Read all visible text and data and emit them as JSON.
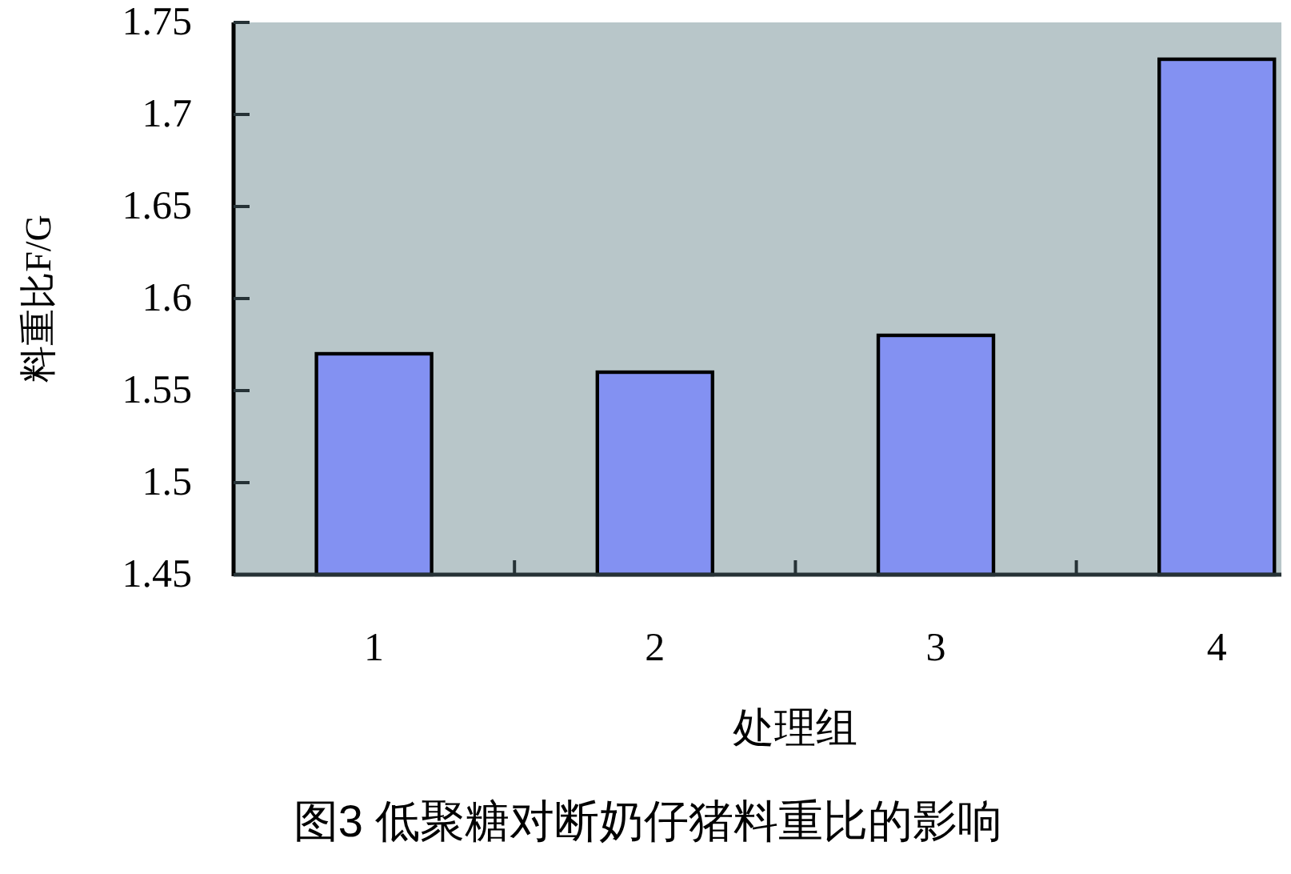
{
  "chart_data": {
    "type": "bar",
    "title": "图3 低聚糖对断奶仔猪料重比的影响",
    "xlabel": "处理组",
    "ylabel": "料重比F/G",
    "categories": [
      "1",
      "2",
      "3",
      "4"
    ],
    "values": [
      1.57,
      1.56,
      1.58,
      1.73
    ],
    "color": "#8391f2",
    "ylim": [
      1.45,
      1.75
    ],
    "yticks": [
      1.45,
      1.5,
      1.55,
      1.6,
      1.65,
      1.7,
      1.75
    ]
  }
}
